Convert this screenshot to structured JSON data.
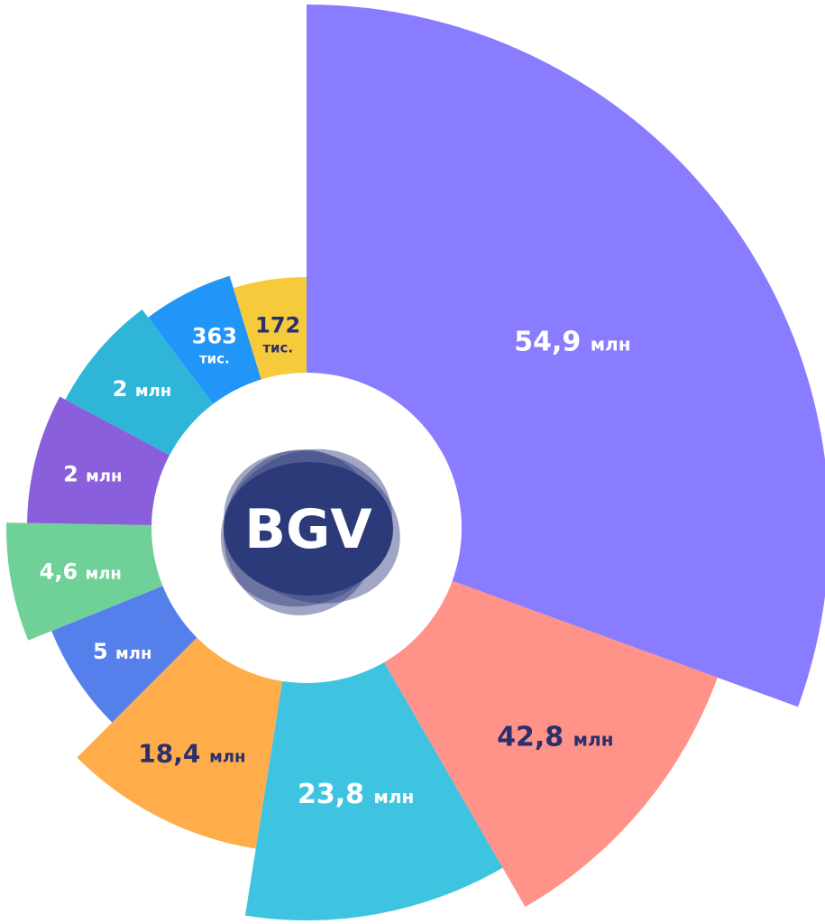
{
  "chart_data": {
    "type": "polar-area",
    "title": "",
    "order": "clockwise from 12 o'clock, decreasing radius",
    "series": [
      {
        "value_label": "54,9",
        "unit": "млн",
        "value": 54.9,
        "value_unit": "млн",
        "color": "#8a7cff",
        "text_color": "#ffffff"
      },
      {
        "value_label": "42,8",
        "unit": "млн",
        "value": 42.8,
        "value_unit": "млн",
        "color": "#ff938a",
        "text_color": "#2b2f6b"
      },
      {
        "value_label": "23,8",
        "unit": "млн",
        "value": 23.8,
        "value_unit": "млн",
        "color": "#3ec4e0",
        "text_color": "#ffffff"
      },
      {
        "value_label": "18,4",
        "unit": "млн",
        "value": 18.4,
        "value_unit": "млн",
        "color": "#ffad4a",
        "text_color": "#2b2f6b"
      },
      {
        "value_label": "5",
        "unit": "млн",
        "value": 5,
        "value_unit": "млн",
        "color": "#5580ec",
        "text_color": "#ffffff"
      },
      {
        "value_label": "4,6",
        "unit": "млн",
        "value": 4.6,
        "value_unit": "млн",
        "color": "#6fd197",
        "text_color": "#ffffff"
      },
      {
        "value_label": "2",
        "unit": "млн",
        "value": 2,
        "value_unit": "млн",
        "color": "#8a5fdc",
        "text_color": "#ffffff"
      },
      {
        "value_label": "2",
        "unit": "млн",
        "value": 2,
        "value_unit": "млн",
        "color": "#2eb5d8",
        "text_color": "#ffffff"
      },
      {
        "value_label": "363",
        "unit": "тис.",
        "value": 363,
        "value_unit": "тис.",
        "color": "#2196f8",
        "text_color": "#ffffff"
      },
      {
        "value_label": "172",
        "unit": "тис.",
        "value": 172,
        "value_unit": "тис.",
        "color": "#f5cb3c",
        "text_color": "#2b2f6b"
      }
    ]
  },
  "center_logo": {
    "text": "BGV",
    "color": "#2d3a7a",
    "text_color": "#ffffff"
  }
}
